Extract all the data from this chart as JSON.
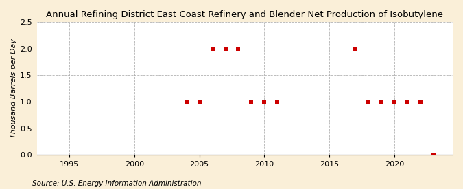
{
  "title": "Annual Refining District East Coast Refinery and Blender Net Production of Isobutylene",
  "ylabel": "Thousand Barrels per Day",
  "source": "Source: U.S. Energy Information Administration",
  "background_color": "#faefd8",
  "plot_bg_color": "#ffffff",
  "marker_color": "#cc0000",
  "years": [
    2004,
    2005,
    2006,
    2007,
    2008,
    2009,
    2010,
    2011,
    2017,
    2018,
    2019,
    2019,
    2020,
    2020,
    2021,
    2021,
    2022,
    2023
  ],
  "values": [
    1.0,
    1.0,
    2.0,
    2.0,
    2.0,
    1.0,
    1.0,
    1.0,
    2.0,
    1.0,
    1.0,
    1.0,
    1.0,
    1.0,
    1.0,
    1.0,
    1.0,
    0.0
  ],
  "xlim": [
    1992.5,
    2024.5
  ],
  "ylim": [
    0.0,
    2.5
  ],
  "yticks": [
    0.0,
    0.5,
    1.0,
    1.5,
    2.0,
    2.5
  ],
  "xticks": [
    1995,
    2000,
    2005,
    2010,
    2015,
    2020
  ],
  "title_fontsize": 9.5,
  "label_fontsize": 8.0,
  "tick_fontsize": 8.0,
  "source_fontsize": 7.5
}
